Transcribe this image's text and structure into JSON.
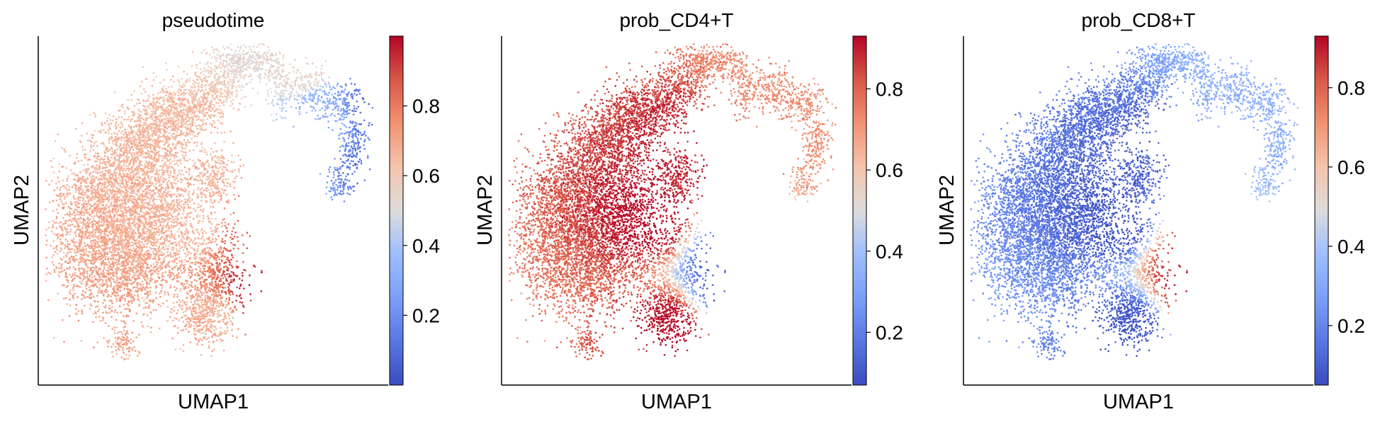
{
  "chart_data": [
    {
      "type": "scatter",
      "title": "pseudotime",
      "xlabel": "UMAP1",
      "ylabel": "UMAP2",
      "colorbar": {
        "colormap": "coolwarm",
        "range": [
          0.0,
          1.0
        ],
        "ticks": [
          0.2,
          0.4,
          0.6,
          0.8
        ]
      },
      "grid": false,
      "regions": [
        {
          "x": 0.45,
          "y": 0.47,
          "value": 0.66
        },
        {
          "x": 0.53,
          "y": 0.66,
          "value": 0.66
        },
        {
          "x": 0.76,
          "y": 0.91,
          "value": 0.55
        },
        {
          "x": 0.82,
          "y": 0.78,
          "value": 0.3
        },
        {
          "x": 0.94,
          "y": 0.8,
          "value": 0.1
        },
        {
          "x": 0.97,
          "y": 0.63,
          "value": 0.12
        },
        {
          "x": 0.6,
          "y": 0.43,
          "value": 0.86
        },
        {
          "x": 0.63,
          "y": 0.28,
          "value": 0.97
        },
        {
          "x": 0.49,
          "y": 0.17,
          "value": 0.68
        }
      ]
    },
    {
      "type": "scatter",
      "title": "prob_CD4+T",
      "xlabel": "UMAP1",
      "ylabel": "UMAP2",
      "colorbar": {
        "colormap": "coolwarm",
        "range": [
          0.07,
          0.93
        ],
        "ticks": [
          0.2,
          0.4,
          0.6,
          0.8
        ]
      },
      "grid": false,
      "regions": [
        {
          "x": 0.45,
          "y": 0.47,
          "value": 0.93
        },
        {
          "x": 0.55,
          "y": 0.66,
          "value": 0.9
        },
        {
          "x": 0.77,
          "y": 0.9,
          "value": 0.72
        },
        {
          "x": 0.85,
          "y": 0.8,
          "value": 0.72
        },
        {
          "x": 0.98,
          "y": 0.7,
          "value": 0.72
        },
        {
          "x": 0.63,
          "y": 0.36,
          "value": 0.14
        },
        {
          "x": 0.63,
          "y": 0.28,
          "value": 0.12
        },
        {
          "x": 0.49,
          "y": 0.17,
          "value": 0.93
        }
      ]
    },
    {
      "type": "scatter",
      "title": "prob_CD8+T",
      "xlabel": "UMAP1",
      "ylabel": "UMAP2",
      "colorbar": {
        "colormap": "coolwarm",
        "range": [
          0.05,
          0.93
        ],
        "ticks": [
          0.2,
          0.4,
          0.6,
          0.8
        ]
      },
      "grid": false,
      "regions": [
        {
          "x": 0.45,
          "y": 0.47,
          "value": 0.07
        },
        {
          "x": 0.55,
          "y": 0.66,
          "value": 0.1
        },
        {
          "x": 0.77,
          "y": 0.9,
          "value": 0.33
        },
        {
          "x": 0.85,
          "y": 0.8,
          "value": 0.33
        },
        {
          "x": 0.98,
          "y": 0.7,
          "value": 0.33
        },
        {
          "x": 0.63,
          "y": 0.36,
          "value": 0.88
        },
        {
          "x": 0.63,
          "y": 0.28,
          "value": 0.9
        },
        {
          "x": 0.49,
          "y": 0.17,
          "value": 0.07
        }
      ]
    }
  ],
  "colors": {
    "coolwarm_low": "#3b4cc0",
    "coolwarm_mid": "#dddddd",
    "coolwarm_high": "#b40426",
    "axis": "#000000",
    "background": "#ffffff"
  }
}
